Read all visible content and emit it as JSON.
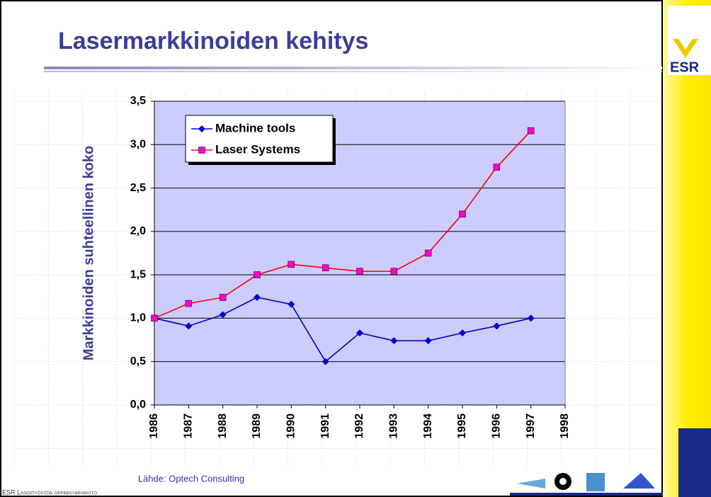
{
  "title": "Lasermarkkinoiden kehitys",
  "logo_text": "ESR",
  "source": "Lähde: Optech Consulting",
  "footer": "ESR Lasertyöstön oppimisympäristö",
  "chart_data": {
    "type": "line",
    "y_label": "Markkinoiden suhteellinen koko",
    "categories": [
      "1986",
      "1987",
      "1988",
      "1989",
      "1990",
      "1991",
      "1992",
      "1993",
      "1994",
      "1995",
      "1996",
      "1997",
      "1998"
    ],
    "series": [
      {
        "name": "Machine tools",
        "color": "#0000cc",
        "marker_color": "#0000cc",
        "marker": "diamond",
        "values": [
          1.0,
          0.91,
          1.04,
          1.24,
          1.16,
          0.5,
          0.83,
          0.74,
          0.74,
          0.83,
          0.91,
          1.0,
          null
        ]
      },
      {
        "name": "Laser Systems",
        "color": "#ff0000",
        "marker_color": "#ff00cc",
        "marker": "square",
        "values": [
          1.0,
          1.17,
          1.24,
          1.5,
          1.62,
          1.58,
          1.54,
          1.54,
          1.75,
          2.2,
          2.74,
          3.16,
          null
        ]
      }
    ],
    "ylim": [
      0,
      3.5
    ],
    "yticks": [
      {
        "value": 0,
        "label": "0,0"
      },
      {
        "value": 0.5,
        "label": "0,5"
      },
      {
        "value": 1,
        "label": "1,0"
      },
      {
        "value": 1.5,
        "label": "1,5"
      },
      {
        "value": 2,
        "label": "2,0"
      },
      {
        "value": 2.5,
        "label": "2,5"
      },
      {
        "value": 3,
        "label": "3,0"
      },
      {
        "value": 3.5,
        "label": "3,5"
      }
    ],
    "grid": true,
    "legend": "top-left",
    "plot_color": "#ccccff"
  }
}
